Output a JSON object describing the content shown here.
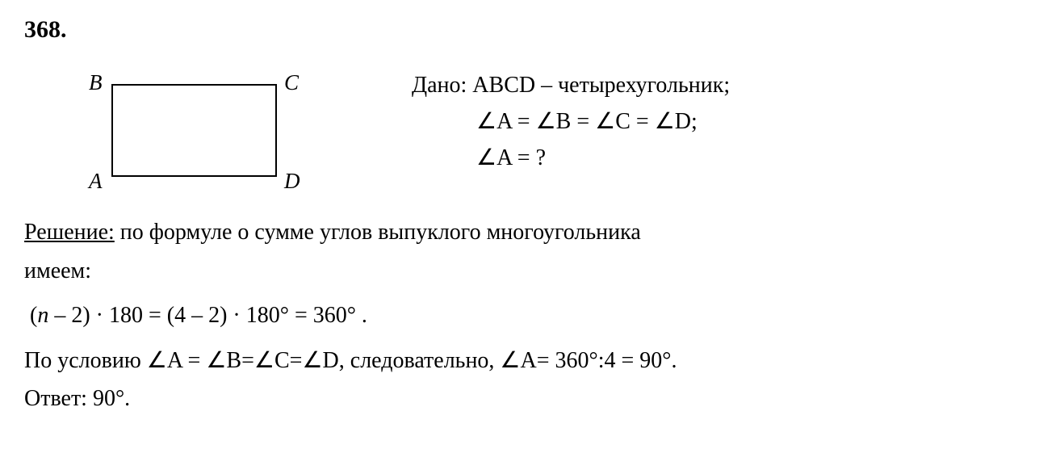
{
  "problemNumber": "368.",
  "diagram": {
    "vertices": {
      "topLeft": "B",
      "topRight": "C",
      "bottomLeft": "A",
      "bottomRight": "D"
    }
  },
  "given": {
    "line1_prefix": "Дано: ",
    "line1_main": "ABCD – четырехугольник;",
    "line2": "∠A = ∠B = ∠C = ∠D;",
    "line3": "∠A = ?"
  },
  "solution": {
    "label": "Решение:",
    "text1": " по формуле о сумме углов выпуклого многоугольника",
    "text2": "имеем:",
    "formula_part1": "(",
    "formula_n": "n",
    "formula_part2": " – 2) · 180 = (4 – 2) · 180° = 360° .",
    "conclusion1": "По условию ∠A = ∠B=∠C=∠D, следовательно, ∠A= 360°:4 = 90°.",
    "answer_label": "Ответ: ",
    "answer_value": "90°."
  }
}
